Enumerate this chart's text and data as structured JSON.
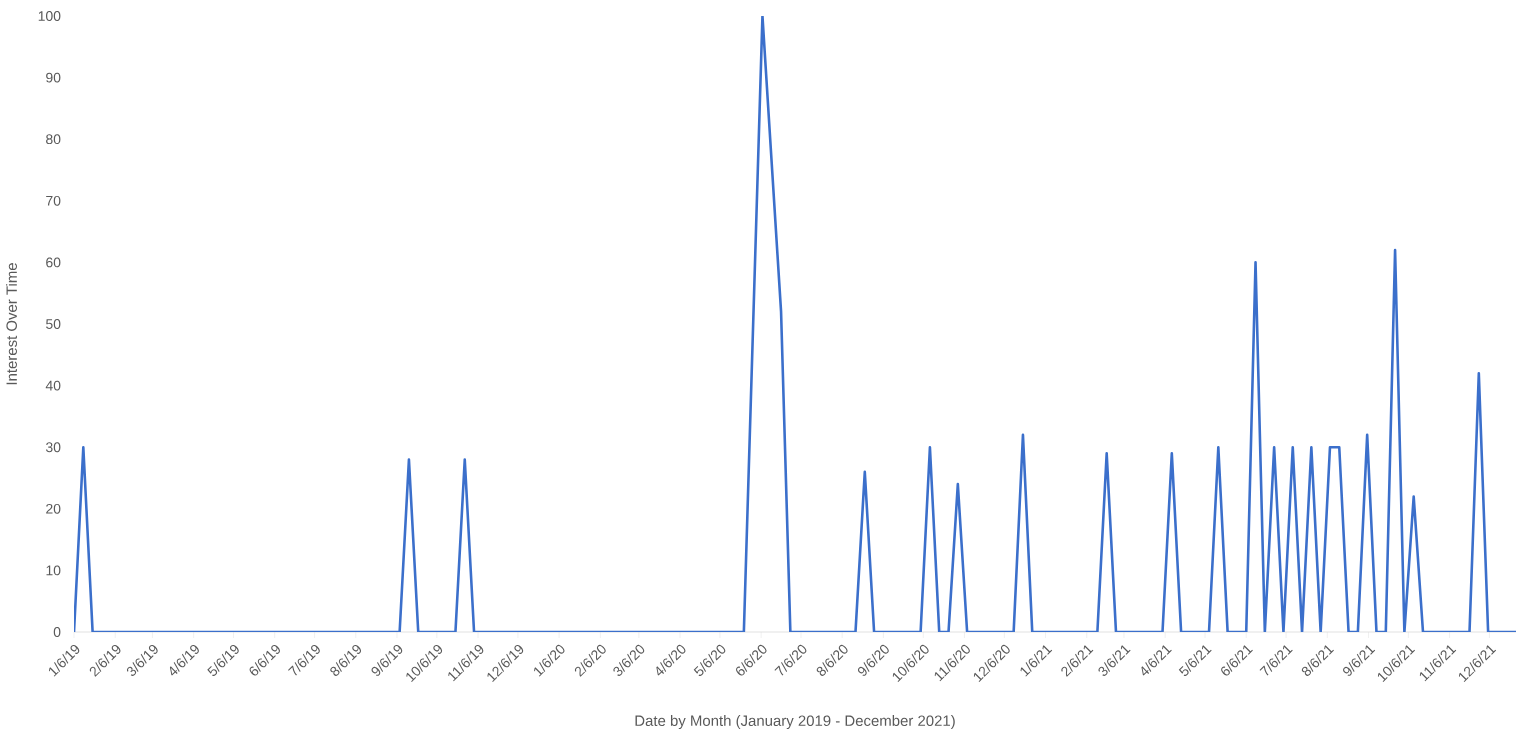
{
  "chart_data": {
    "type": "line",
    "xlabel": "Date by Month (January 2019 - December 2021)",
    "ylabel": "Interest Over Time",
    "x": [
      "2019-01-06",
      "2019-01-13",
      "2019-01-20",
      "2019-09-08",
      "2019-09-15",
      "2019-09-22",
      "2019-10-20",
      "2019-10-27",
      "2019-11-03",
      "2020-05-24",
      "2020-06-07",
      "2020-06-21",
      "2020-06-28",
      "2020-08-16",
      "2020-08-23",
      "2020-08-30",
      "2020-10-04",
      "2020-10-11",
      "2020-10-18",
      "2020-10-25",
      "2020-11-01",
      "2020-11-08",
      "2020-12-13",
      "2020-12-20",
      "2020-12-27",
      "2021-02-14",
      "2021-02-21",
      "2021-02-28",
      "2021-04-04",
      "2021-04-11",
      "2021-04-18",
      "2021-05-09",
      "2021-05-16",
      "2021-05-23",
      "2021-06-06",
      "2021-06-13",
      "2021-06-20",
      "2021-06-27",
      "2021-07-04",
      "2021-07-11",
      "2021-07-18",
      "2021-07-25",
      "2021-08-01",
      "2021-08-08",
      "2021-08-15",
      "2021-08-22",
      "2021-08-29",
      "2021-09-05",
      "2021-09-12",
      "2021-09-19",
      "2021-09-26",
      "2021-10-03",
      "2021-10-10",
      "2021-10-17",
      "2021-11-21",
      "2021-11-28",
      "2021-12-05",
      "2021-12-26"
    ],
    "series": [
      {
        "color": "#3b6fcb",
        "values": [
          0,
          30,
          0,
          0,
          28,
          0,
          0,
          28,
          0,
          0,
          100,
          52,
          0,
          0,
          26,
          0,
          0,
          30,
          0,
          0,
          24,
          0,
          0,
          32,
          0,
          0,
          29,
          0,
          0,
          29,
          0,
          0,
          30,
          0,
          0,
          60,
          0,
          30,
          0,
          30,
          0,
          30,
          0,
          30,
          30,
          0,
          0,
          32,
          0,
          0,
          62,
          0,
          22,
          0,
          0,
          42,
          0,
          0
        ]
      }
    ],
    "xlim": [
      "2019-01-06",
      "2021-12-26"
    ],
    "xticks": [
      {
        "value": "2019-01-06",
        "label": "1/6/19"
      },
      {
        "value": "2019-02-06",
        "label": "2/6/19"
      },
      {
        "value": "2019-03-06",
        "label": "3/6/19"
      },
      {
        "value": "2019-04-06",
        "label": "4/6/19"
      },
      {
        "value": "2019-05-06",
        "label": "5/6/19"
      },
      {
        "value": "2019-06-06",
        "label": "6/6/19"
      },
      {
        "value": "2019-07-06",
        "label": "7/6/19"
      },
      {
        "value": "2019-08-06",
        "label": "8/6/19"
      },
      {
        "value": "2019-09-06",
        "label": "9/6/19"
      },
      {
        "value": "2019-10-06",
        "label": "10/6/19"
      },
      {
        "value": "2019-11-06",
        "label": "11/6/19"
      },
      {
        "value": "2019-12-06",
        "label": "12/6/19"
      },
      {
        "value": "2020-01-06",
        "label": "1/6/20"
      },
      {
        "value": "2020-02-06",
        "label": "2/6/20"
      },
      {
        "value": "2020-03-06",
        "label": "3/6/20"
      },
      {
        "value": "2020-04-06",
        "label": "4/6/20"
      },
      {
        "value": "2020-05-06",
        "label": "5/6/20"
      },
      {
        "value": "2020-06-06",
        "label": "6/6/20"
      },
      {
        "value": "2020-07-06",
        "label": "7/6/20"
      },
      {
        "value": "2020-08-06",
        "label": "8/6/20"
      },
      {
        "value": "2020-09-06",
        "label": "9/6/20"
      },
      {
        "value": "2020-10-06",
        "label": "10/6/20"
      },
      {
        "value": "2020-11-06",
        "label": "11/6/20"
      },
      {
        "value": "2020-12-06",
        "label": "12/6/20"
      },
      {
        "value": "2021-01-06",
        "label": "1/6/21"
      },
      {
        "value": "2021-02-06",
        "label": "2/6/21"
      },
      {
        "value": "2021-03-06",
        "label": "3/6/21"
      },
      {
        "value": "2021-04-06",
        "label": "4/6/21"
      },
      {
        "value": "2021-05-06",
        "label": "5/6/21"
      },
      {
        "value": "2021-06-06",
        "label": "6/6/21"
      },
      {
        "value": "2021-07-06",
        "label": "7/6/21"
      },
      {
        "value": "2021-08-06",
        "label": "8/6/21"
      },
      {
        "value": "2021-09-06",
        "label": "9/6/21"
      },
      {
        "value": "2021-10-06",
        "label": "10/6/21"
      },
      {
        "value": "2021-11-06",
        "label": "11/6/21"
      },
      {
        "value": "2021-12-06",
        "label": "12/6/21"
      }
    ],
    "ylim": [
      0,
      100
    ],
    "yticks": [
      0,
      10,
      20,
      30,
      40,
      50,
      60,
      70,
      80,
      90,
      100
    ],
    "grid": false,
    "legend": false,
    "marker": "none",
    "line_style": "solid"
  }
}
